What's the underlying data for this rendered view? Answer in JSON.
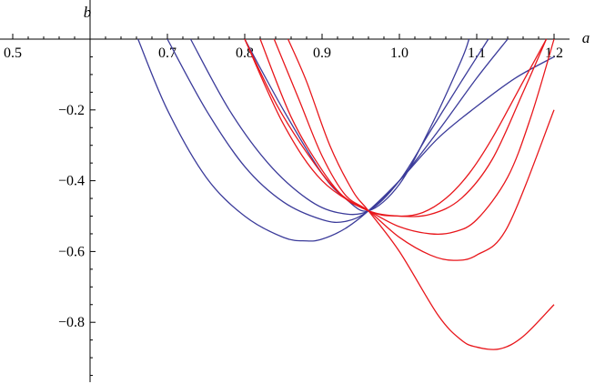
{
  "chart_data": {
    "type": "line",
    "xlabel": "a",
    "ylabel": "b",
    "xlim": [
      0.5,
      1.2
    ],
    "ylim": [
      -0.95,
      0.0
    ],
    "grid": false,
    "x_ticks": [
      {
        "value": 0.5,
        "label": "0.5"
      },
      {
        "value": 0.7,
        "label": "0.7"
      },
      {
        "value": 0.8,
        "label": "0.8"
      },
      {
        "value": 0.9,
        "label": "0.9"
      },
      {
        "value": 1.0,
        "label": "1.0"
      },
      {
        "value": 1.1,
        "label": "1.1"
      },
      {
        "value": 1.2,
        "label": "1.2"
      }
    ],
    "y_ticks": [
      {
        "value": -0.2,
        "label": "−0.2"
      },
      {
        "value": -0.4,
        "label": "−0.4"
      },
      {
        "value": -0.6,
        "label": "−0.6"
      },
      {
        "value": -0.8,
        "label": "−0.8"
      }
    ],
    "common_point": [
      0.96,
      -0.485
    ],
    "series": [
      {
        "group": "blue",
        "color": "#3b3b9a",
        "x": [
          0.662,
          0.7,
          0.75,
          0.8,
          0.85,
          0.88,
          0.9,
          0.93,
          0.96,
          1.0,
          1.05,
          1.1,
          1.15,
          1.2
        ],
        "y": [
          0.0,
          -0.2,
          -0.39,
          -0.5,
          -0.56,
          -0.57,
          -0.565,
          -0.535,
          -0.485,
          -0.4,
          -0.28,
          -0.19,
          -0.11,
          -0.05
        ]
      },
      {
        "group": "blue",
        "color": "#3b3b9a",
        "x": [
          0.7,
          0.75,
          0.8,
          0.85,
          0.9,
          0.93,
          0.96,
          1.0,
          1.05,
          1.1,
          1.14
        ],
        "y": [
          0.0,
          -0.2,
          -0.36,
          -0.46,
          -0.51,
          -0.515,
          -0.485,
          -0.4,
          -0.26,
          -0.11,
          0.0
        ]
      },
      {
        "group": "blue",
        "color": "#3b3b9a",
        "x": [
          0.73,
          0.78,
          0.83,
          0.88,
          0.92,
          0.96,
          1.0,
          1.04,
          1.08,
          1.115
        ],
        "y": [
          0.0,
          -0.2,
          -0.35,
          -0.45,
          -0.49,
          -0.485,
          -0.4,
          -0.26,
          -0.12,
          0.0
        ]
      },
      {
        "group": "blue",
        "color": "#3b3b9a",
        "x": [
          0.8,
          0.85,
          0.9,
          0.93,
          0.96,
          1.0,
          1.04,
          1.08,
          1.09
        ],
        "y": [
          0.0,
          -0.2,
          -0.38,
          -0.45,
          -0.485,
          -0.41,
          -0.25,
          -0.06,
          0.0
        ]
      },
      {
        "group": "red",
        "color": "#e8161b",
        "x": [
          0.856,
          0.88,
          0.91,
          0.94,
          0.96,
          1.0,
          1.05,
          1.08,
          1.1,
          1.13,
          1.16,
          1.2
        ],
        "y": [
          0.0,
          -0.12,
          -0.3,
          -0.43,
          -0.485,
          -0.6,
          -0.78,
          -0.85,
          -0.87,
          -0.875,
          -0.84,
          -0.75
        ]
      },
      {
        "group": "red",
        "color": "#e8161b",
        "x": [
          0.838,
          0.87,
          0.9,
          0.93,
          0.96,
          1.0,
          1.04,
          1.07,
          1.1,
          1.14,
          1.2
        ],
        "y": [
          0.0,
          -0.17,
          -0.33,
          -0.44,
          -0.485,
          -0.56,
          -0.61,
          -0.625,
          -0.61,
          -0.53,
          -0.2
        ]
      },
      {
        "group": "red",
        "color": "#e8161b",
        "x": [
          0.82,
          0.86,
          0.9,
          0.93,
          0.96,
          1.0,
          1.04,
          1.07,
          1.1,
          1.14,
          1.17,
          1.2
        ],
        "y": [
          0.0,
          -0.22,
          -0.37,
          -0.45,
          -0.485,
          -0.53,
          -0.55,
          -0.545,
          -0.51,
          -0.39,
          -0.22,
          0.0
        ]
      },
      {
        "group": "red",
        "color": "#e8161b",
        "x": [
          0.8,
          0.85,
          0.9,
          0.96,
          1.0,
          1.04,
          1.08,
          1.12,
          1.16,
          1.19
        ],
        "y": [
          0.0,
          -0.24,
          -0.4,
          -0.485,
          -0.5,
          -0.495,
          -0.45,
          -0.34,
          -0.15,
          0.0
        ]
      },
      {
        "group": "red",
        "color": "#e8161b",
        "x": [
          0.8,
          0.84,
          0.88,
          0.92,
          0.96,
          1.0,
          1.03,
          1.06,
          1.09,
          1.12,
          1.16,
          1.19
        ],
        "y": [
          0.0,
          -0.18,
          -0.32,
          -0.43,
          -0.485,
          -0.5,
          -0.49,
          -0.45,
          -0.38,
          -0.28,
          -0.12,
          0.0
        ]
      }
    ]
  }
}
